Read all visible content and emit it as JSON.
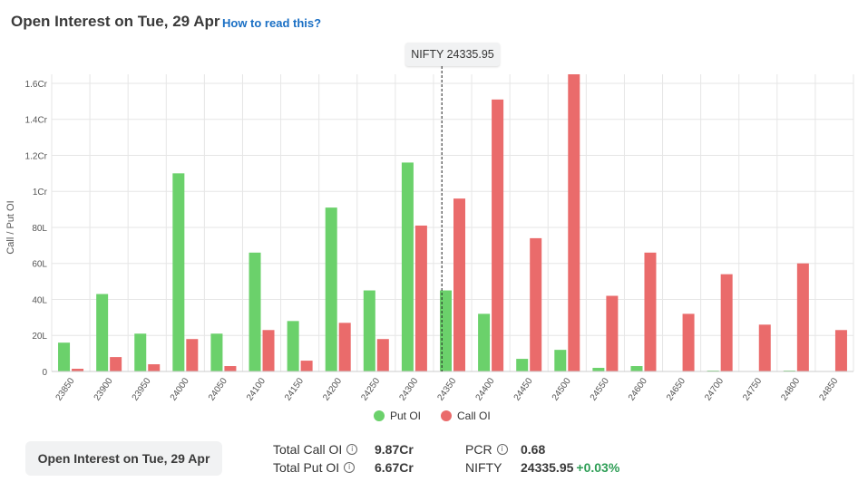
{
  "header": {
    "title": "Open Interest on Tue, 29 Apr",
    "help_link": "How to read this?"
  },
  "spot_marker": {
    "label": "NIFTY 24335.95",
    "value": 24335.95
  },
  "colors": {
    "put": "#6bd16b",
    "call": "#ea6b6b",
    "grid": "#e6e6e6",
    "axis_text": "#555555"
  },
  "chart_data": {
    "type": "bar",
    "ylabel": "Call / Put OI",
    "xlabel": "",
    "y_ticks": [
      {
        "value": 0,
        "label": "0"
      },
      {
        "value": 20,
        "label": "20L"
      },
      {
        "value": 40,
        "label": "40L"
      },
      {
        "value": 60,
        "label": "60L"
      },
      {
        "value": 80,
        "label": "80L"
      },
      {
        "value": 100,
        "label": "1Cr"
      },
      {
        "value": 120,
        "label": "1.2Cr"
      },
      {
        "value": 140,
        "label": "1.4Cr"
      },
      {
        "value": 160,
        "label": "1.6Cr"
      }
    ],
    "ylim": [
      0,
      165
    ],
    "categories": [
      "23850",
      "23900",
      "23950",
      "24000",
      "24050",
      "24100",
      "24150",
      "24200",
      "24250",
      "24300",
      "24350",
      "24400",
      "24450",
      "24500",
      "24550",
      "24600",
      "24650",
      "24700",
      "24750",
      "24800",
      "24850"
    ],
    "series": [
      {
        "name": "Put OI",
        "values": [
          16,
          43,
          21,
          110,
          21,
          66,
          28,
          91,
          45,
          116,
          45,
          32,
          7,
          12,
          2,
          3,
          0,
          0.5,
          0,
          0.5,
          0
        ]
      },
      {
        "name": "Call OI",
        "values": [
          1.5,
          8,
          4,
          18,
          3,
          23,
          6,
          27,
          18,
          81,
          96,
          151,
          74,
          165,
          42,
          66,
          32,
          54,
          26,
          60,
          23
        ]
      }
    ],
    "grid": true,
    "legend": "bottom-center"
  },
  "legend": {
    "put": "Put OI",
    "call": "Call OI"
  },
  "bottom_button": "Open Interest on Tue, 29 Apr",
  "stats": {
    "total_call_label": "Total Call OI",
    "total_call_value": "9.87Cr",
    "total_put_label": "Total Put OI",
    "total_put_value": "6.67Cr",
    "pcr_label": "PCR",
    "pcr_value": "0.68",
    "nifty_label": "NIFTY",
    "nifty_value": "24335.95",
    "nifty_change": "+0.03%"
  }
}
